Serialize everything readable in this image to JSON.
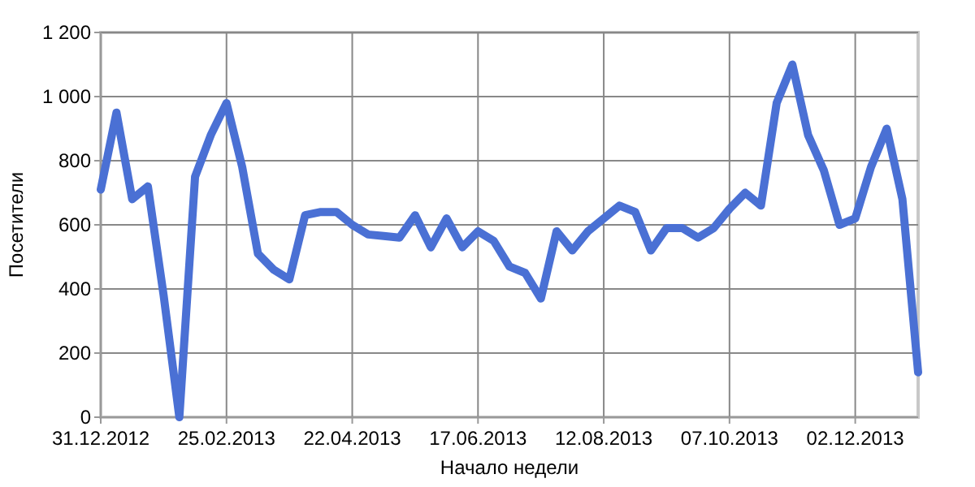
{
  "chart_data": {
    "type": "line",
    "xlabel": "Начало недели",
    "ylabel": "Посетители",
    "x": [
      "2012-12-31",
      "2013-01-07",
      "2013-01-14",
      "2013-01-21",
      "2013-01-28",
      "2013-02-04",
      "2013-02-11",
      "2013-02-18",
      "2013-02-25",
      "2013-03-04",
      "2013-03-11",
      "2013-03-18",
      "2013-03-25",
      "2013-04-01",
      "2013-04-08",
      "2013-04-15",
      "2013-04-22",
      "2013-04-29",
      "2013-05-06",
      "2013-05-13",
      "2013-05-20",
      "2013-05-27",
      "2013-06-03",
      "2013-06-10",
      "2013-06-17",
      "2013-06-24",
      "2013-07-01",
      "2013-07-08",
      "2013-07-15",
      "2013-07-22",
      "2013-07-29",
      "2013-08-05",
      "2013-08-12",
      "2013-08-19",
      "2013-08-26",
      "2013-09-02",
      "2013-09-09",
      "2013-09-16",
      "2013-09-23",
      "2013-09-30",
      "2013-10-07",
      "2013-10-14",
      "2013-10-21",
      "2013-10-28",
      "2013-11-04",
      "2013-11-11",
      "2013-11-18",
      "2013-11-25",
      "2013-12-02",
      "2013-12-09",
      "2013-12-16",
      "2013-12-23",
      "2013-12-30"
    ],
    "series": [
      {
        "color": "#4a70d4",
        "values": [
          710,
          950,
          680,
          720,
          380,
          0,
          750,
          880,
          980,
          780,
          510,
          460,
          430,
          630,
          640,
          640,
          600,
          570,
          565,
          560,
          630,
          530,
          620,
          530,
          580,
          550,
          470,
          450,
          370,
          580,
          520,
          580,
          620,
          660,
          640,
          520,
          590,
          590,
          560,
          590,
          650,
          700,
          660,
          980,
          1100,
          880,
          770,
          600,
          620,
          780,
          900,
          680,
          140
        ]
      }
    ],
    "xlim": [
      "2012-12-31",
      "2013-12-30"
    ],
    "xticks": [
      {
        "value": "2012-12-31",
        "label": "31.12.2012"
      },
      {
        "value": "2013-02-25",
        "label": "25.02.2013"
      },
      {
        "value": "2013-04-22",
        "label": "22.04.2013"
      },
      {
        "value": "2013-06-17",
        "label": "17.06.2013"
      },
      {
        "value": "2013-08-12",
        "label": "12.08.2013"
      },
      {
        "value": "2013-10-07",
        "label": "07.10.2013"
      },
      {
        "value": "2013-12-02",
        "label": "02.12.2013"
      }
    ],
    "ylim": [
      0,
      1200
    ],
    "yticks": [
      0,
      200,
      400,
      600,
      800,
      {
        "value": 1000,
        "label": "1 000"
      },
      {
        "value": 1200,
        "label": "1 200"
      }
    ],
    "grid": true,
    "line_style": "solid",
    "marker": "none"
  }
}
